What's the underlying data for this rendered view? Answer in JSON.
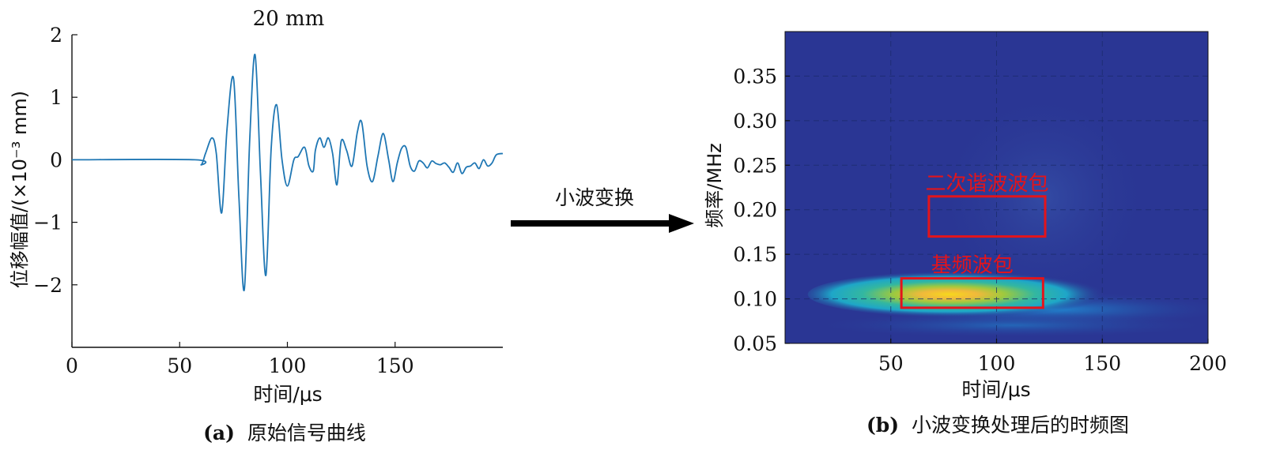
{
  "chart_data": [
    {
      "type": "line",
      "title": "20 mm",
      "xlabel": "时间/μs",
      "ylabel": "位移幅值/(×10⁻³ mm)",
      "caption_label": "(a)",
      "caption_text": "原始信号曲线",
      "xlim": [
        0,
        200
      ],
      "ylim": [
        -3,
        2
      ],
      "xticks": [
        "0",
        "50",
        "100",
        "150"
      ],
      "xtick_values": [
        0,
        50,
        100,
        150
      ],
      "yticks": [
        "2",
        "1",
        "0",
        "−1",
        "−2"
      ],
      "ytick_values": [
        2,
        1,
        0,
        -1,
        -2
      ],
      "series": [
        {
          "color": "#1f77b4",
          "x": [
            0,
            57,
            60,
            62,
            65,
            67,
            69.5,
            72,
            75,
            77.5,
            80,
            82.5,
            85,
            87.5,
            90,
            92.5,
            95,
            97.5,
            100,
            103,
            105,
            108,
            110,
            112,
            113,
            115,
            117,
            119,
            121,
            123,
            125,
            127.5,
            130,
            132.5,
            134.5,
            137,
            139.5,
            142,
            144.5,
            147,
            149,
            151,
            153,
            155,
            157,
            159,
            161,
            163,
            165,
            167,
            169,
            171,
            173,
            175,
            177,
            179,
            181,
            183,
            185,
            187,
            189,
            191,
            193,
            195,
            197,
            200
          ],
          "y": [
            0,
            0,
            -0.08,
            0.1,
            0.35,
            0.1,
            -0.85,
            0.5,
            1.3,
            -0.6,
            -2.08,
            0.3,
            1.68,
            -0.2,
            -1.85,
            0.2,
            0.88,
            0.0,
            -0.42,
            0.0,
            0.05,
            0.2,
            -0.1,
            -0.18,
            0.15,
            0.35,
            0.2,
            0.35,
            0.1,
            -0.4,
            0.3,
            0.15,
            -0.1,
            0.45,
            0.6,
            -0.1,
            -0.35,
            0.05,
            0.42,
            0.0,
            -0.35,
            -0.05,
            0.18,
            0.2,
            -0.1,
            -0.18,
            -0.02,
            -0.05,
            -0.13,
            -0.02,
            -0.06,
            -0.08,
            -0.05,
            -0.12,
            -0.2,
            -0.05,
            -0.22,
            -0.12,
            -0.1,
            -0.05,
            -0.14,
            0.0,
            -0.1,
            -0.05,
            0.08,
            0.1
          ]
        }
      ]
    },
    {
      "type": "heatmap",
      "xlabel": "时间/μs",
      "ylabel": "频率/MHz",
      "caption_label": "(b)",
      "caption_text": "小波变换处理后的时频图",
      "xlim": [
        0,
        200
      ],
      "ylim": [
        0.05,
        0.4
      ],
      "xticks": [
        "50",
        "100",
        "150",
        "200"
      ],
      "xtick_values": [
        50,
        100,
        150,
        200
      ],
      "yticks": [
        "0.35",
        "0.30",
        "0.25",
        "0.20",
        "0.15",
        "0.10",
        "0.05"
      ],
      "ytick_values": [
        0.35,
        0.3,
        0.25,
        0.2,
        0.15,
        0.1,
        0.05
      ],
      "grid": true,
      "grid_x": [
        50,
        100,
        150
      ],
      "grid_y": [
        0.35,
        0.3,
        0.25,
        0.2,
        0.15,
        0.1
      ],
      "colormap": "parula",
      "background_color": "#2a3694",
      "hotspot": {
        "t_center": 85,
        "f_center": 0.105,
        "t_span": [
          40,
          150
        ],
        "f_span": [
          0.085,
          0.125
        ]
      },
      "annotations": [
        {
          "label": "二次谐波波包",
          "x": [
            68,
            123
          ],
          "y": [
            0.17,
            0.215
          ],
          "color": "#e3141b"
        },
        {
          "label": "基频波包",
          "x": [
            55,
            122
          ],
          "y": [
            0.09,
            0.123
          ],
          "color": "#e3141b"
        }
      ]
    }
  ],
  "arrow": {
    "label": "小波变换"
  }
}
